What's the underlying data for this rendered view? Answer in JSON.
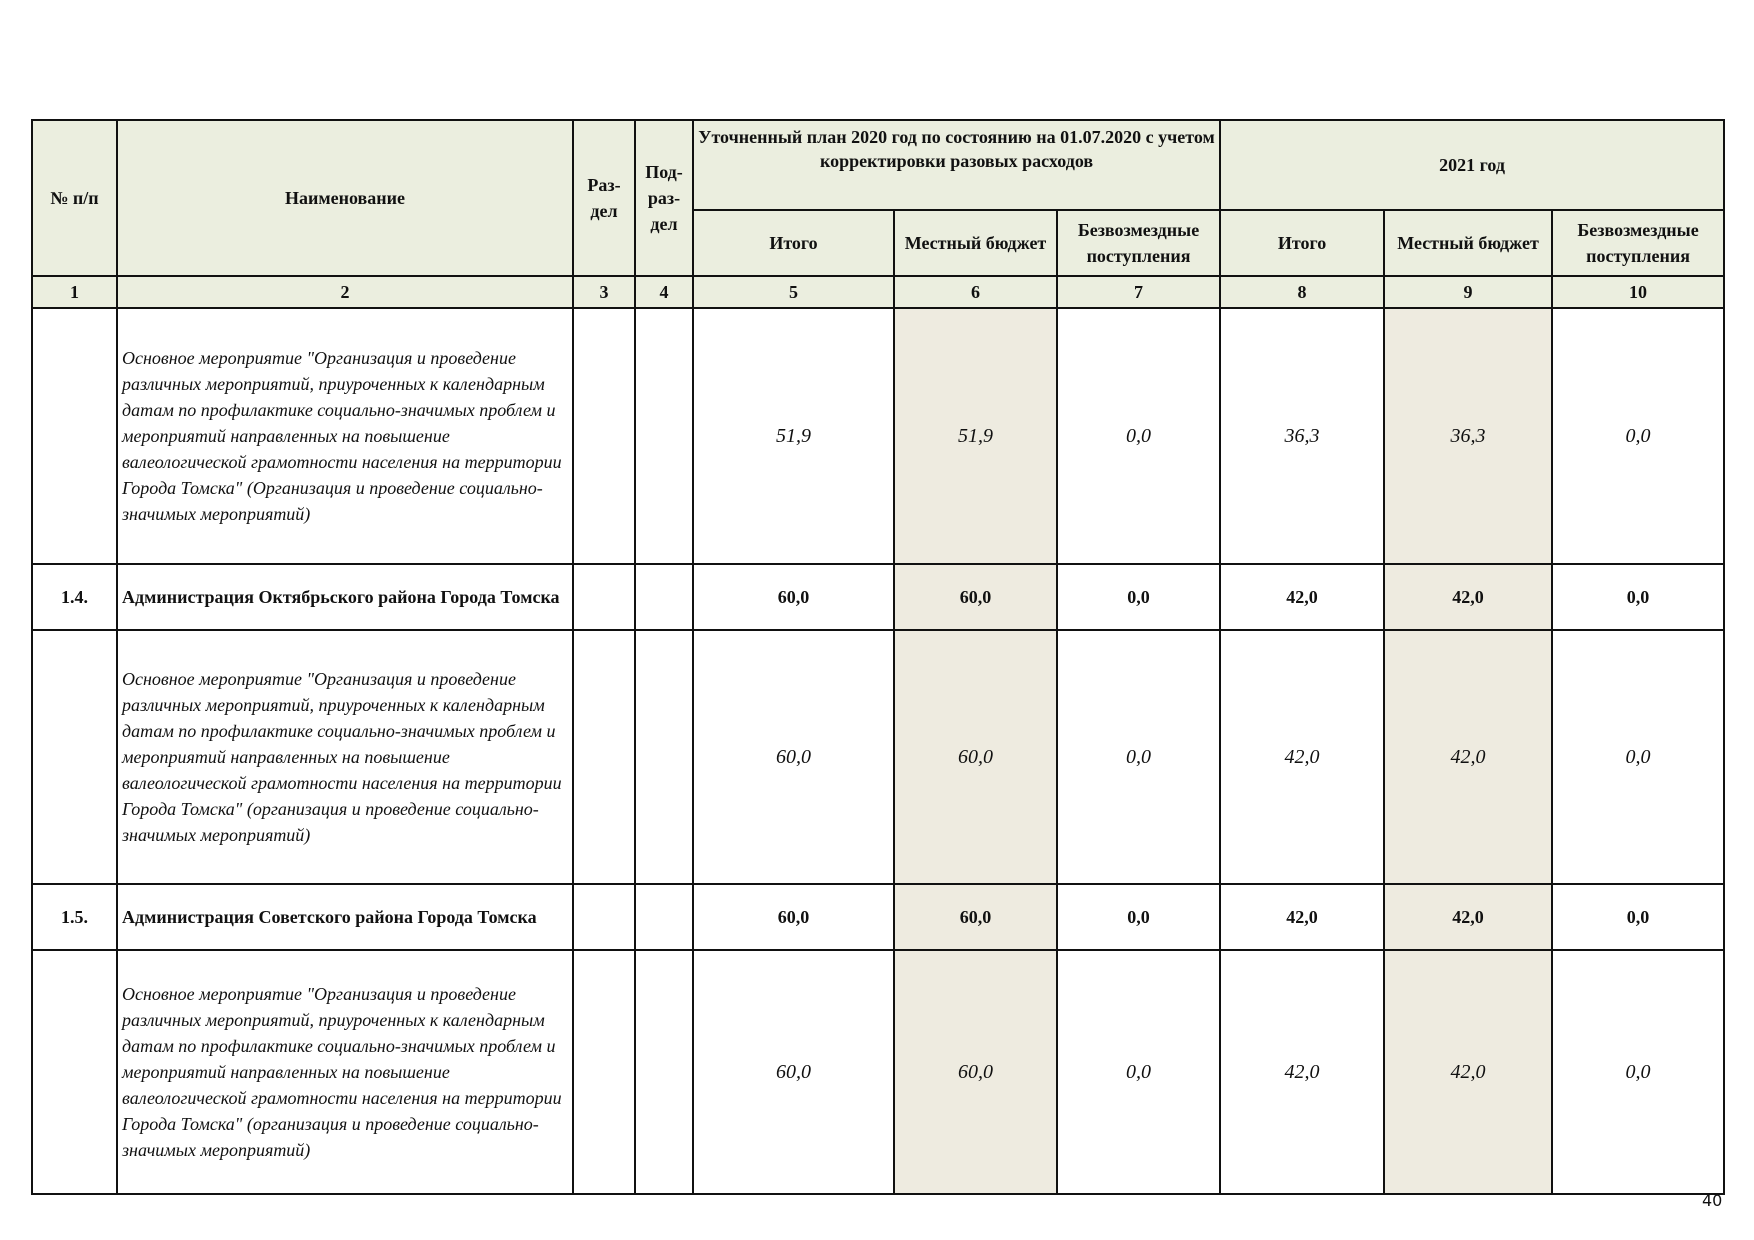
{
  "header": {
    "col_num": "№ п/п",
    "col_name": "Наименование",
    "col_razdel": "Раз-дел",
    "col_podrazdel": "Под-раз-дел",
    "group_2020": "Уточненный план 2020 год по состоянию на 01.07.2020 с учетом корректировки  разовых расходов",
    "group_2021": "2021 год",
    "sub_total": "Итого",
    "sub_local": "Местный бюджет",
    "sub_free": "Безвозмездные поступления"
  },
  "column_numbers": [
    "1",
    "2",
    "3",
    "4",
    "5",
    "6",
    "7",
    "8",
    "9",
    "10"
  ],
  "rows": [
    {
      "num": "",
      "name": "Основное мероприятие \"Организация и проведение различных мероприятий, приуроченных к календарным датам по профилактике социально-значимых проблем и мероприятий направленных на повышение валеологической грамотности населения на территории Города Томска\" (Организация и проведение социально-значимых мероприятий)",
      "values": [
        "51,9",
        "51,9",
        "0,0",
        "36,3",
        "36,3",
        "0,0"
      ]
    },
    {
      "num": "1.4.",
      "name": "Администрация Октябрьского района Города Томска",
      "values": [
        "60,0",
        "60,0",
        "0,0",
        "42,0",
        "42,0",
        "0,0"
      ]
    },
    {
      "num": "",
      "name": "Основное мероприятие \"Организация и проведение различных мероприятий, приуроченных к календарным датам по профилактике социально-значимых проблем и мероприятий направленных на повышение валеологической грамотности населения на территории Города Томска\" (организация и проведение социально-значимых мероприятий)",
      "values": [
        "60,0",
        "60,0",
        "0,0",
        "42,0",
        "42,0",
        "0,0"
      ]
    },
    {
      "num": "1.5.",
      "name": "Администрация Советского района Города Томска",
      "values": [
        "60,0",
        "60,0",
        "0,0",
        "42,0",
        "42,0",
        "0,0"
      ]
    },
    {
      "num": "",
      "name": "Основное мероприятие \"Организация и проведение различных мероприятий, приуроченных к календарным датам по профилактике социально-значимых проблем и мероприятий направленных на повышение валеологической грамотности населения на территории Города Томска\" (организация и проведение социально-значимых мероприятий)",
      "values": [
        "60,0",
        "60,0",
        "0,0",
        "42,0",
        "42,0",
        "0,0"
      ]
    }
  ],
  "page_number": "40"
}
